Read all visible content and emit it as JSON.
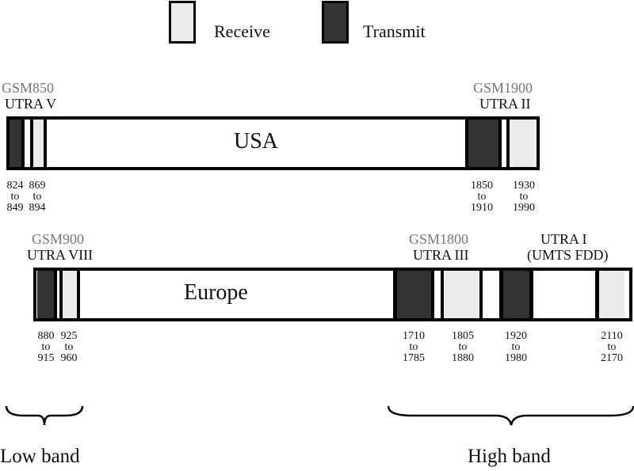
{
  "legend": {
    "receive": "Receive",
    "transmit": "Transmit"
  },
  "colors": {
    "receive": "#ebebeb",
    "transmit": "#333333"
  },
  "usa": {
    "title": "USA",
    "groups": [
      {
        "system": "GSM850",
        "utra": "UTRA V"
      },
      {
        "system": "GSM1900",
        "utra": "UTRA II"
      }
    ],
    "ranges": [
      {
        "from": "824",
        "to_word": "to",
        "to": "849"
      },
      {
        "from": "869",
        "to_word": "to",
        "to": "894"
      },
      {
        "from": "1850",
        "to_word": "to",
        "to": "1910"
      },
      {
        "from": "1930",
        "to_word": "to",
        "to": "1990"
      }
    ]
  },
  "europe": {
    "title": "Europe",
    "groups": [
      {
        "system": "GSM900",
        "utra": "UTRA VIII"
      },
      {
        "system": "GSM1800",
        "utra": "UTRA III"
      },
      {
        "system": "UTRA I",
        "utra": "(UMTS FDD)"
      }
    ],
    "ranges": [
      {
        "from": "880",
        "to_word": "to",
        "to": "915"
      },
      {
        "from": "925",
        "to_word": "to",
        "to": "960"
      },
      {
        "from": "1710",
        "to_word": "to",
        "to": "1785"
      },
      {
        "from": "1805",
        "to_word": "to",
        "to": "1880"
      },
      {
        "from": "1920",
        "to_word": "to",
        "to": "1980"
      },
      {
        "from": "2110",
        "to_word": "to",
        "to": "2170"
      }
    ]
  },
  "bands": {
    "low": "Low band",
    "high": "High band"
  }
}
